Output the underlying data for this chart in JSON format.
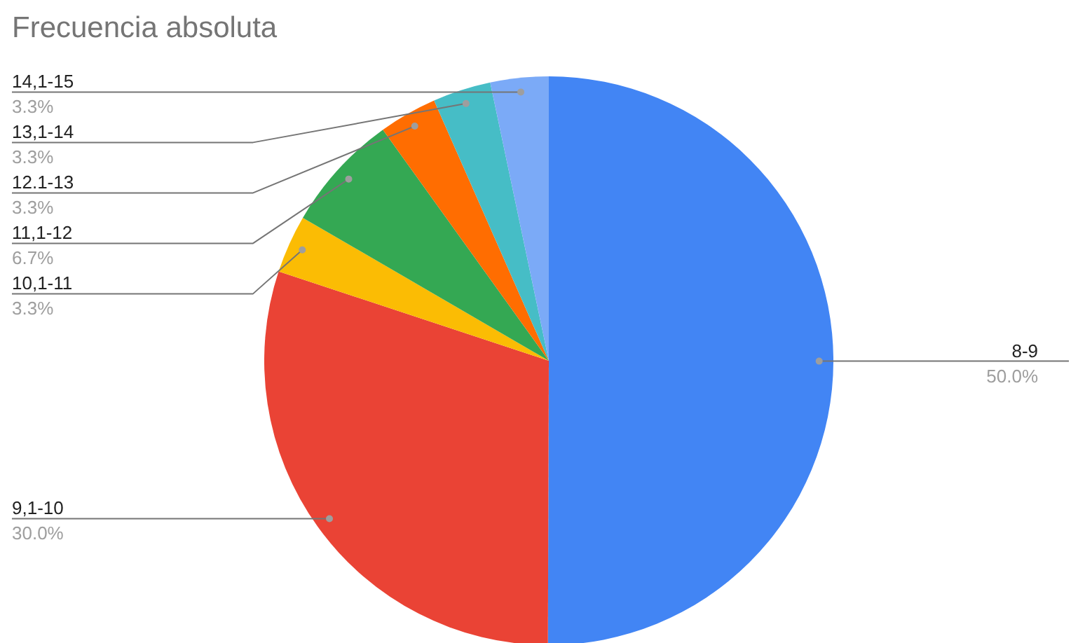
{
  "chart_data": {
    "type": "pie",
    "title": "Frecuencia absoluta",
    "categories": [
      "8-9",
      "9,1-10",
      "10,1-11",
      "11,1-12",
      "12.1-13",
      "13,1-14",
      "14,1-15"
    ],
    "values": [
      50.0,
      30.0,
      3.3,
      6.7,
      3.3,
      3.3,
      3.3
    ],
    "value_labels": [
      "50.0%",
      "30.0%",
      "3.3%",
      "6.7%",
      "3.3%",
      "3.3%",
      "3.3%"
    ],
    "colors": [
      "#4285f4",
      "#ea4335",
      "#fbbc04",
      "#34a853",
      "#ff6d01",
      "#46bdc6",
      "#7baaf7"
    ],
    "legend": false
  }
}
